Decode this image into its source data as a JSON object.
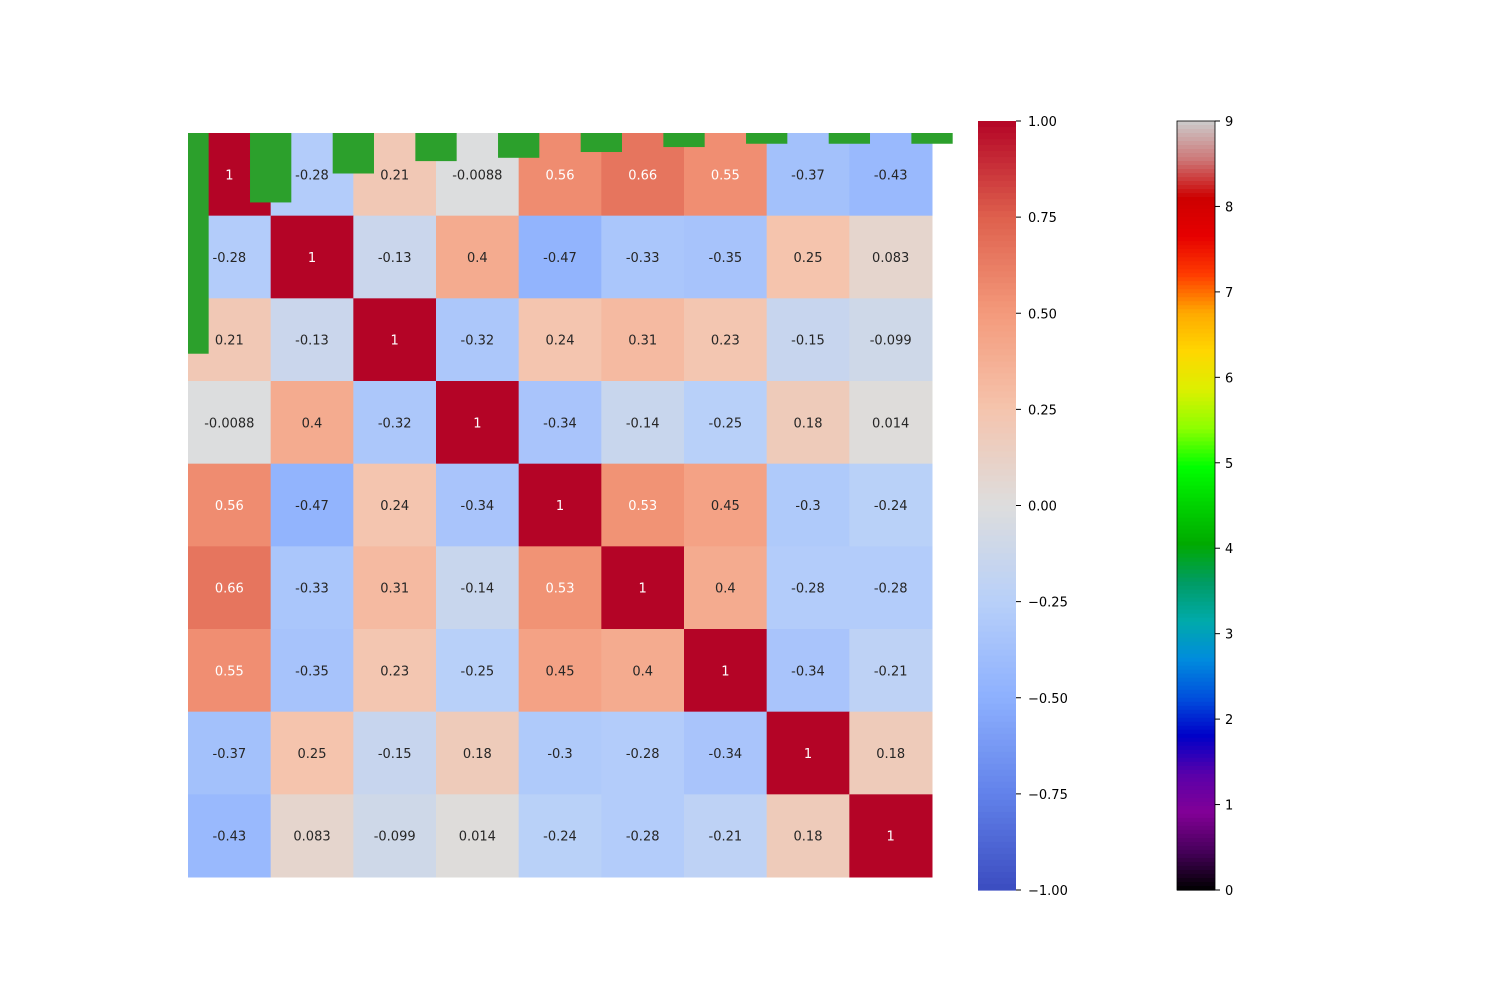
{
  "chart_data": {
    "type": "heatmap",
    "title": "",
    "xlabel": "",
    "ylabel": "",
    "annotated": true,
    "matrix": [
      [
        1,
        -0.28,
        0.21,
        -0.0088,
        0.56,
        0.66,
        0.55,
        -0.37,
        -0.43
      ],
      [
        -0.28,
        1,
        -0.13,
        0.4,
        -0.47,
        -0.33,
        -0.35,
        0.25,
        0.083
      ],
      [
        0.21,
        -0.13,
        1,
        -0.32,
        0.24,
        0.31,
        0.23,
        -0.15,
        -0.099
      ],
      [
        -0.0088,
        0.4,
        -0.32,
        1,
        -0.34,
        -0.14,
        -0.25,
        0.18,
        0.014
      ],
      [
        0.56,
        -0.47,
        0.24,
        -0.34,
        1,
        0.53,
        0.45,
        -0.3,
        -0.24
      ],
      [
        0.66,
        -0.33,
        0.31,
        -0.14,
        0.53,
        1,
        0.4,
        -0.28,
        -0.28
      ],
      [
        0.55,
        -0.35,
        0.23,
        -0.25,
        0.45,
        0.4,
        1,
        -0.34,
        -0.21
      ],
      [
        -0.37,
        0.25,
        -0.15,
        0.18,
        -0.3,
        -0.28,
        -0.34,
        1,
        0.18
      ],
      [
        -0.43,
        0.083,
        -0.099,
        0.014,
        -0.24,
        -0.28,
        -0.21,
        0.18,
        1
      ]
    ],
    "cell_labels": [
      [
        "1",
        "-0.28",
        "0.21",
        "-0.0088",
        "0.56",
        "0.66",
        "0.55",
        "-0.37",
        "-0.43"
      ],
      [
        "-0.28",
        "1",
        "-0.13",
        "0.4",
        "-0.47",
        "-0.33",
        "-0.35",
        "0.25",
        "0.083"
      ],
      [
        "0.21",
        "-0.13",
        "1",
        "-0.32",
        "0.24",
        "0.31",
        "0.23",
        "-0.15",
        "-0.099"
      ],
      [
        "-0.0088",
        "0.4",
        "-0.32",
        "1",
        "-0.34",
        "-0.14",
        "-0.25",
        "0.18",
        "0.014"
      ],
      [
        "0.56",
        "-0.47",
        "0.24",
        "-0.34",
        "1",
        "0.53",
        "0.45",
        "-0.3",
        "-0.24"
      ],
      [
        "0.66",
        "-0.33",
        "0.31",
        "-0.14",
        "0.53",
        "1",
        "0.4",
        "-0.28",
        "-0.28"
      ],
      [
        "0.55",
        "-0.35",
        "0.23",
        "-0.25",
        "0.45",
        "0.4",
        "1",
        "-0.34",
        "-0.21"
      ],
      [
        "-0.37",
        "0.25",
        "-0.15",
        "0.18",
        "-0.3",
        "-0.28",
        "-0.34",
        "1",
        "0.18"
      ],
      [
        "-0.43",
        "0.083",
        "-0.099",
        "0.014",
        "-0.24",
        "-0.28",
        "-0.21",
        "0.18",
        "1"
      ]
    ],
    "colormap": "coolwarm",
    "vmin": -1,
    "vmax": 1,
    "colorbar_ticks": [
      -1.0,
      -0.75,
      -0.5,
      -0.25,
      0.0,
      0.25,
      0.5,
      0.75,
      1.0
    ],
    "colorbar_tick_labels": [
      "−1.00",
      "−0.75",
      "−0.50",
      "−0.25",
      "0.00",
      "0.25",
      "0.50",
      "0.75",
      "1.00"
    ],
    "overlay_bars": {
      "type": "bar",
      "color": "#2ca02c",
      "direction": "down from top edge",
      "values": [
        2.67,
        0.84,
        0.49,
        0.34,
        0.3,
        0.23,
        0.17,
        0.13,
        0.13,
        0.13
      ],
      "value_units": "matrix rows"
    },
    "second_colorbar": {
      "colormap": "nipy_spectral",
      "vmin": 0,
      "vmax": 9,
      "ticks": [
        0,
        1,
        2,
        3,
        4,
        5,
        6,
        7,
        8,
        9
      ],
      "tick_labels": [
        "0",
        "1",
        "2",
        "3",
        "4",
        "5",
        "6",
        "7",
        "8",
        "9"
      ]
    },
    "grid": false,
    "legend": "none"
  }
}
